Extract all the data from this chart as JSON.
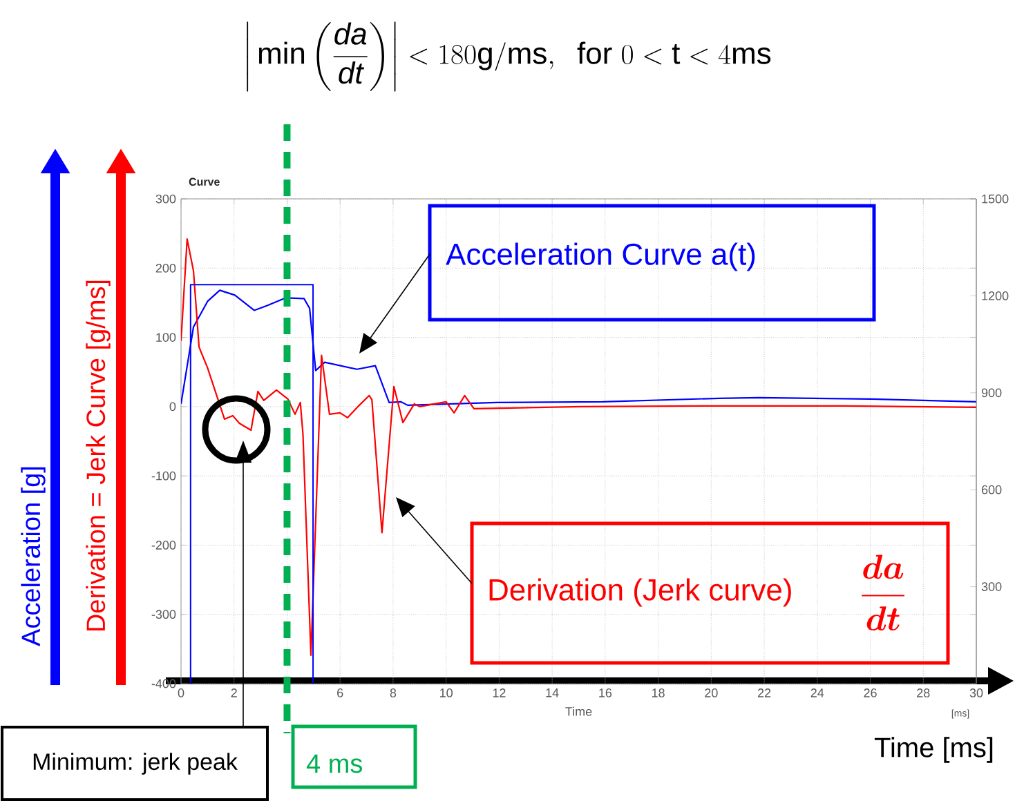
{
  "chart_data": {
    "type": "line",
    "title": "\\left|\\,\\min\\left(\\frac{\\mathit{da}}{\\mathit{dt}}\\right)\\right| < 180\\mathrm{g/ms},\\ \\ \\mathrm{for}\\ 0 < \\mathrm{t} < 4\\mathrm{ms}",
    "subtitle": "Curve",
    "xlabel": "Time",
    "ylabel": "Acceleration [g]",
    "series": [
      {
        "color": "#0000ff",
        "x": [
          0,
          0.47,
          1.0,
          1.46,
          2.03,
          2.76,
          3.25,
          3.94,
          4.64,
          4.85,
          5.08,
          5.42,
          6.64,
          7.33,
          7.85,
          8.29,
          8.55,
          11.9,
          15.9,
          20.3,
          21.8,
          26,
          30
        ],
        "values": [
          4,
          115,
          152,
          168,
          161,
          139,
          146,
          157,
          156,
          142,
          52,
          64,
          54,
          59,
          6,
          7,
          2,
          6,
          7,
          12,
          13,
          11,
          7
        ]
      },
      {
        "color": "#ff0000",
        "x": [
          0,
          0.23,
          0.47,
          0.68,
          1.0,
          1.38,
          1.64,
          1.95,
          2.2,
          2.64,
          2.9,
          3.12,
          3.6,
          4.03,
          4.3,
          4.5,
          4.6,
          4.9,
          5.3,
          5.6,
          6.0,
          6.28,
          6.7,
          7.1,
          7.2,
          7.58,
          8.03,
          8.37,
          8.8,
          9.0,
          10.0,
          10.3,
          10.7,
          11.05,
          15.1,
          20,
          25,
          30
        ],
        "values": [
          95,
          242,
          196,
          86,
          56,
          12,
          -18,
          -13,
          -24,
          -34,
          22,
          9,
          24,
          11,
          -11,
          6,
          -40,
          -359,
          74,
          -11,
          -9,
          -16,
          1,
          16,
          10,
          -182,
          29,
          -23,
          4,
          0,
          7,
          -9,
          16,
          -3,
          0,
          1,
          1,
          -1
        ]
      },
      {
        "color": "#0000ff",
        "x": [
          0.36,
          0.36,
          4.98,
          4.98
        ],
        "values": [
          -400,
          176,
          176,
          -400
        ]
      }
    ],
    "xlim": [
      0,
      30
    ],
    "xticks": [
      0,
      2,
      {
        "value": 4,
        "label": null
      },
      6,
      8,
      10,
      12,
      14,
      16,
      18,
      20,
      22,
      24,
      26,
      28,
      30
    ],
    "ylim": [
      -400,
      300
    ],
    "yticks": [
      -400,
      -300,
      -200,
      -100,
      0,
      100,
      200,
      300
    ],
    "y2lim": [
      0,
      1500
    ],
    "y2ticks": [
      300,
      600,
      900,
      1200,
      1500
    ],
    "grid": true,
    "ref_lines": [
      {
        "axis": "x",
        "value": 4,
        "label": "4 ms",
        "color": "#00b050",
        "line_style": "dashed"
      }
    ],
    "annotations": [
      "Acceleration Curve a(t)",
      "Derivation (Jerk curve)",
      "\\frac{da}{dt}",
      "Minimum: jerk peak",
      "Derivation = Jerk Curve [g/ms]",
      "[ms]",
      "Time [ms]"
    ]
  }
}
